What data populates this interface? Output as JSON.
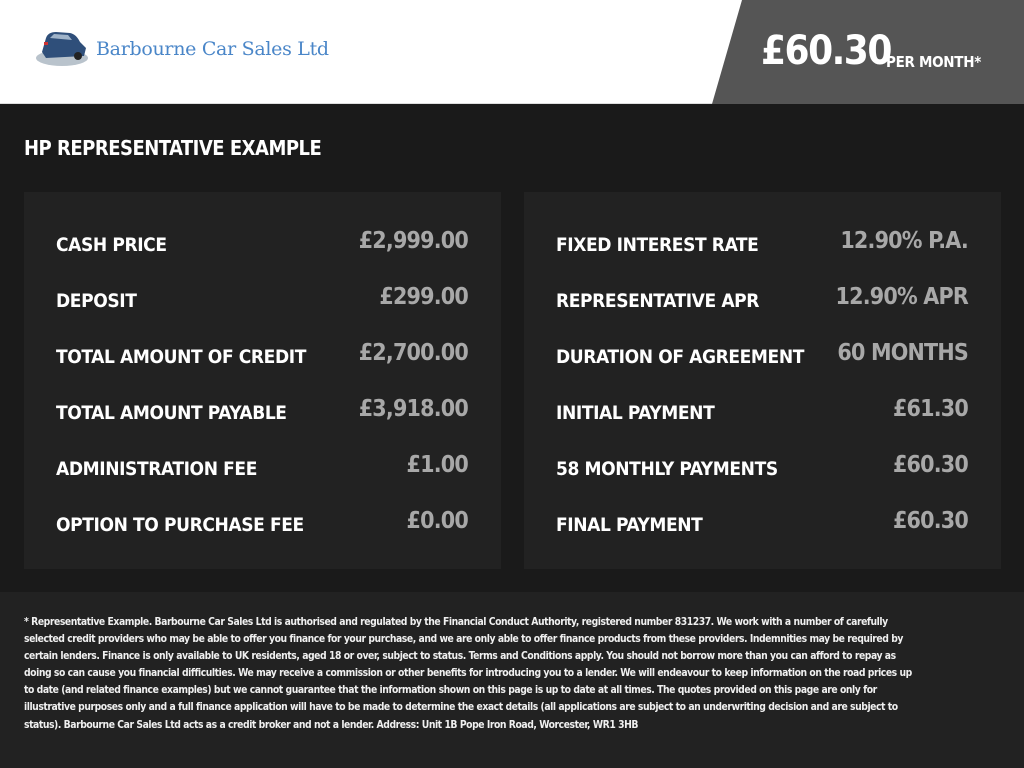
{
  "header": {
    "company": "Barbourne Car Sales Ltd",
    "price": "£60.30",
    "per_month": "PER MONTH*"
  },
  "section_title": "HP REPRESENTATIVE EXAMPLE",
  "left": [
    {
      "label": "CASH PRICE",
      "value": "£2,999.00"
    },
    {
      "label": "DEPOSIT",
      "value": "£299.00"
    },
    {
      "label": "TOTAL AMOUNT OF CREDIT",
      "value": "£2,700.00"
    },
    {
      "label": "TOTAL AMOUNT PAYABLE",
      "value": "£3,918.00"
    },
    {
      "label": "ADMINISTRATION FEE",
      "value": "£1.00"
    },
    {
      "label": "OPTION TO PURCHASE FEE",
      "value": "£0.00"
    }
  ],
  "right": [
    {
      "label": "FIXED INTEREST RATE",
      "value": "12.90% P.A."
    },
    {
      "label": "REPRESENTATIVE APR",
      "value": "12.90% APR"
    },
    {
      "label": "DURATION OF AGREEMENT",
      "value": "60 MONTHS"
    },
    {
      "label": "INITIAL PAYMENT",
      "value": "£61.30"
    },
    {
      "label": "58 MONTHLY PAYMENTS",
      "value": "£60.30"
    },
    {
      "label": "FINAL PAYMENT",
      "value": "£60.30"
    }
  ],
  "disclaimer": "* Representative Example. Barbourne Car Sales Ltd is authorised and regulated by the Financial Conduct Authority, registered number 831237. We work with a number of carefully selected credit providers who may be able to offer you finance for your purchase, and we are only able to offer finance products from these providers. Indemnities may be required by certain lenders. Finance is only available to UK residents, aged 18 or over, subject to status. Terms and Conditions apply. You should not borrow more than you can afford to repay as doing so can cause you financial difficulties. We may receive a commission or other benefits for introducing you to a lender. We will endeavour to keep information on the road prices up to date (and related finance examples) but we cannot guarantee that the information shown on this page is up to date at all times. The quotes provided on this page are only for illustrative purposes only and a full finance application will have to be made to determine the exact details (all applications are subject to an underwriting decision and are subject to status). Barbourne Car Sales Ltd acts as a credit broker and not a lender. Address: Unit 1B Pope Iron Road, Worcester, WR1 3HB"
}
